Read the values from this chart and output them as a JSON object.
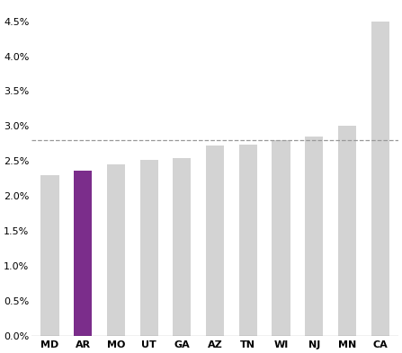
{
  "categories": [
    "MD",
    "AR",
    "MO",
    "UT",
    "GA",
    "AZ",
    "TN",
    "WI",
    "NJ",
    "MN",
    "CA"
  ],
  "values": [
    0.023,
    0.0236,
    0.0245,
    0.0252,
    0.0254,
    0.0272,
    0.0274,
    0.028,
    0.0285,
    0.03,
    0.045
  ],
  "bar_colors": [
    "#d3d3d3",
    "#7b2d8b",
    "#d3d3d3",
    "#d3d3d3",
    "#d3d3d3",
    "#d3d3d3",
    "#d3d3d3",
    "#d3d3d3",
    "#d3d3d3",
    "#d3d3d3",
    "#d3d3d3"
  ],
  "dashed_line_y": 0.028,
  "dashed_line_color": "#999999",
  "ylim": [
    0,
    0.0475
  ],
  "yticks": [
    0.0,
    0.005,
    0.01,
    0.015,
    0.02,
    0.025,
    0.03,
    0.035,
    0.04,
    0.045
  ],
  "ytick_labels": [
    "0.0%",
    "0.5%",
    "1.0%",
    "1.5%",
    "2.0%",
    "2.5%",
    "3.0%",
    "3.5%",
    "4.0%",
    "4.5%"
  ],
  "background_color": "#ffffff",
  "bar_edge_color": "none",
  "tick_fontsize": 8,
  "bar_width": 0.55
}
